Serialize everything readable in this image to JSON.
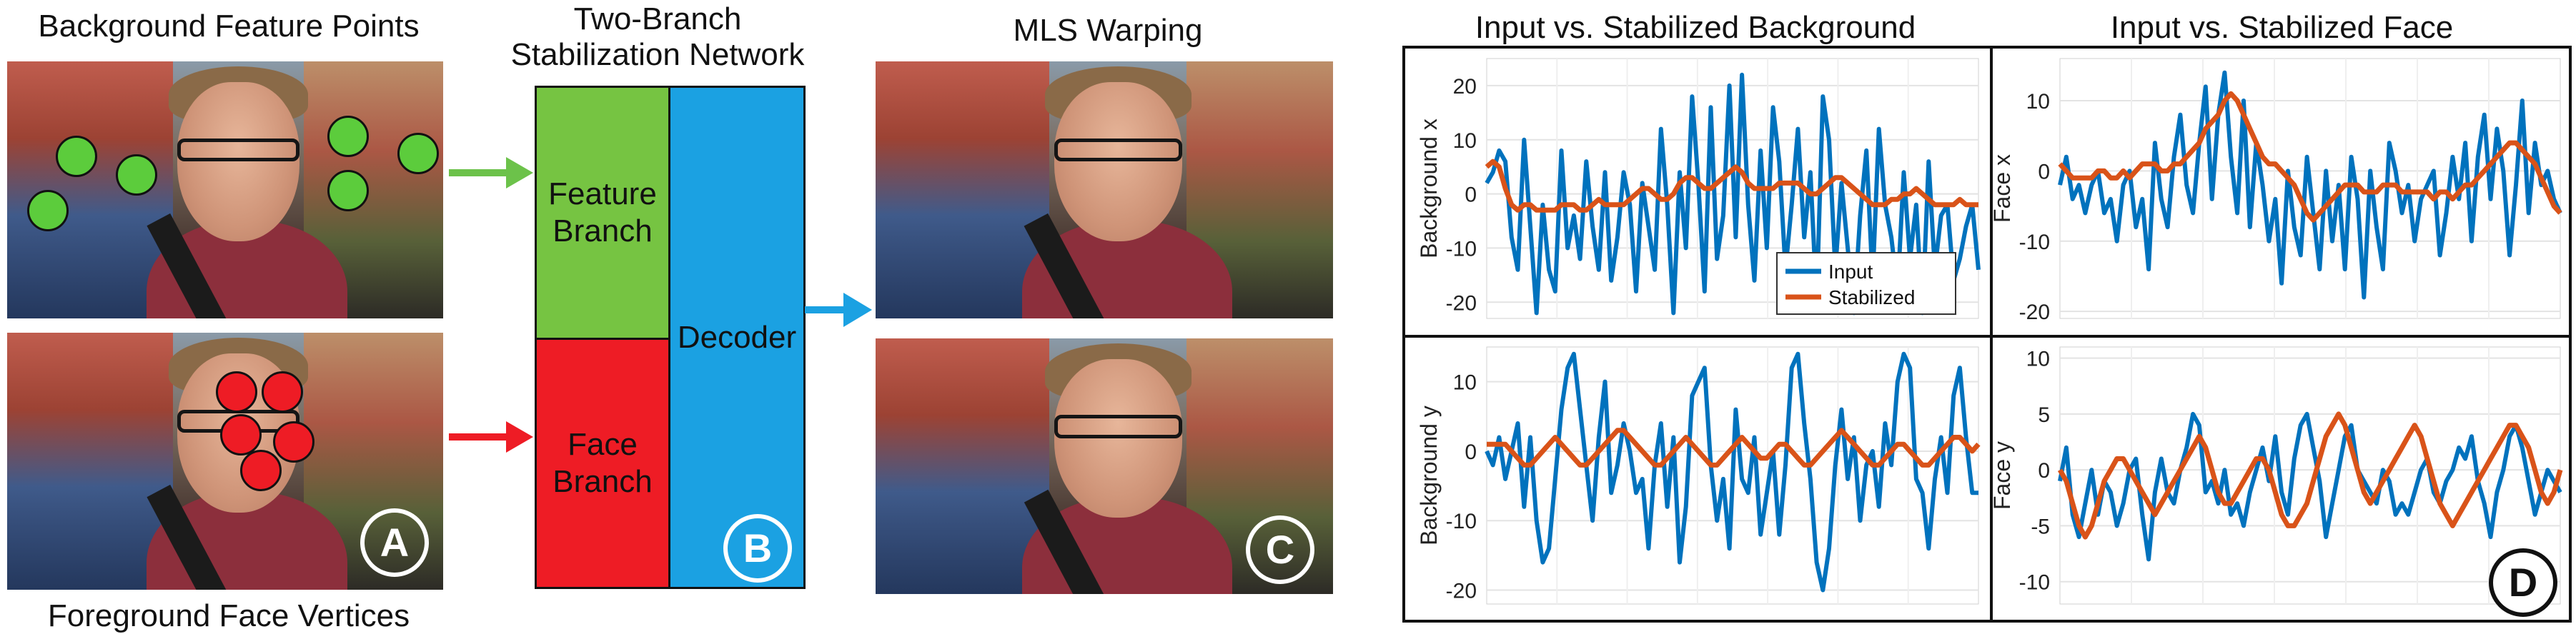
{
  "captions": {
    "background_feature_points": "Background Feature Points",
    "foreground_face_vertices": "Foreground Face Vertices",
    "network_title_line1": "Two-Branch",
    "network_title_line2": "Stabilization Network",
    "mls_warping": "MLS Warping",
    "plot_title_background": "Input vs. Stabilized Background",
    "plot_title_face": "Input vs. Stabilized Face"
  },
  "network": {
    "feature_branch_line1": "Feature",
    "feature_branch_line2": "Branch",
    "face_branch_line1": "Face",
    "face_branch_line2": "Branch",
    "decoder": "Decoder"
  },
  "badges": {
    "a": "A",
    "b": "B",
    "c": "C",
    "d": "D"
  },
  "colors": {
    "feature_branch": "#76c442",
    "face_branch": "#ee1c25",
    "decoder": "#1ba1e2",
    "green_arrow": "#6cc24a",
    "red_arrow": "#ee1c25",
    "blue_arrow": "#1ba1e2",
    "input_series": "#0072bd",
    "stabilized_series": "#d95319"
  },
  "chart_data": [
    {
      "type": "line",
      "ylabel": "Background x",
      "ylim": [
        -23,
        25
      ],
      "yticks": [
        -20,
        -10,
        0,
        10,
        20
      ],
      "legend": {
        "entries": [
          "Input",
          "Stabilized"
        ],
        "placement": "bottom-right"
      },
      "series": [
        {
          "name": "Input",
          "values": [
            2,
            4,
            8,
            6,
            -8,
            -14,
            10,
            -6,
            -22,
            -2,
            -14,
            -18,
            8,
            -10,
            -4,
            -12,
            6,
            -6,
            -14,
            4,
            -16,
            -8,
            4,
            -2,
            -18,
            2,
            -6,
            -14,
            12,
            -2,
            -22,
            4,
            -10,
            18,
            2,
            -18,
            16,
            -12,
            -4,
            20,
            -8,
            22,
            -2,
            -16,
            8,
            -10,
            16,
            6,
            -14,
            -2,
            12,
            -8,
            4,
            -20,
            18,
            10,
            -14,
            2,
            -10,
            -22,
            -4,
            8,
            -16,
            12,
            -2,
            -8,
            -18,
            4,
            -12,
            -2,
            -22,
            6,
            -14,
            -4,
            -2,
            -16,
            -12,
            -6,
            -2,
            -14
          ]
        },
        {
          "name": "Stabilized",
          "values": [
            5,
            6,
            5,
            1,
            -2,
            -3,
            -2,
            -2,
            -3,
            -3,
            -3,
            -3,
            -2,
            -2,
            -2,
            -3,
            -3,
            -2,
            -1,
            -2,
            -2,
            -2,
            -2,
            -1,
            0,
            1,
            1,
            0,
            -1,
            -1,
            0,
            2,
            3,
            3,
            2,
            1,
            1,
            2,
            3,
            4,
            5,
            4,
            2,
            1,
            1,
            1,
            1,
            2,
            2,
            2,
            2,
            1,
            0,
            0,
            1,
            2,
            3,
            3,
            2,
            1,
            0,
            -1,
            -2,
            -2,
            -2,
            -1,
            -1,
            0,
            0,
            1,
            0,
            -1,
            -2,
            -2,
            -2,
            -2,
            -1,
            -2,
            -2,
            -2
          ]
        }
      ]
    },
    {
      "type": "line",
      "ylabel": "Face x",
      "ylim": [
        -21,
        16
      ],
      "yticks": [
        -20,
        -10,
        0,
        10
      ],
      "series": [
        {
          "name": "Input",
          "values": [
            -2,
            2,
            -4,
            -2,
            -6,
            -2,
            0,
            -6,
            -4,
            -10,
            -2,
            0,
            -8,
            -4,
            -14,
            4,
            -4,
            -8,
            2,
            8,
            -2,
            -6,
            4,
            12,
            -4,
            8,
            14,
            2,
            -6,
            10,
            -8,
            4,
            -2,
            -10,
            -4,
            -16,
            0,
            -8,
            -12,
            2,
            -6,
            -14,
            0,
            -10,
            -2,
            -14,
            2,
            -4,
            -18,
            0,
            -8,
            -14,
            4,
            0,
            -6,
            -2,
            -10,
            -4,
            -2,
            0,
            -12,
            -6,
            2,
            -4,
            4,
            -10,
            2,
            8,
            -4,
            6,
            0,
            -12,
            -2,
            10,
            -6,
            4,
            -2,
            0,
            -4,
            -6
          ]
        },
        {
          "name": "Stabilized",
          "values": [
            1,
            0,
            -1,
            -1,
            -1,
            -1,
            0,
            0,
            -1,
            -1,
            0,
            -1,
            0,
            1,
            1,
            1,
            0,
            0,
            1,
            1,
            2,
            3,
            4,
            6,
            7,
            8,
            10,
            11,
            10,
            8,
            6,
            4,
            2,
            1,
            1,
            0,
            -1,
            -2,
            -4,
            -6,
            -7,
            -6,
            -5,
            -4,
            -3,
            -2,
            -2,
            -2,
            -3,
            -3,
            -3,
            -2,
            -2,
            -2,
            -3,
            -3,
            -3,
            -3,
            -3,
            -4,
            -3,
            -3,
            -4,
            -3,
            -2,
            -2,
            -1,
            0,
            1,
            2,
            3,
            4,
            4,
            3,
            2,
            1,
            -1,
            -3,
            -5,
            -6
          ]
        }
      ]
    },
    {
      "type": "line",
      "ylabel": "Background y",
      "ylim": [
        -22,
        15
      ],
      "yticks": [
        -20,
        -10,
        0,
        10
      ],
      "series": [
        {
          "name": "Input",
          "values": [
            0,
            -2,
            2,
            -4,
            0,
            4,
            -8,
            2,
            -10,
            -16,
            -14,
            -4,
            6,
            12,
            14,
            6,
            -2,
            -10,
            2,
            10,
            -6,
            -2,
            4,
            0,
            -6,
            -4,
            -14,
            -2,
            4,
            -8,
            2,
            -16,
            -8,
            8,
            10,
            12,
            -2,
            -10,
            -4,
            -14,
            6,
            -4,
            -6,
            2,
            -12,
            -6,
            0,
            -12,
            -2,
            12,
            14,
            4,
            -4,
            -16,
            -20,
            -14,
            -2,
            6,
            -4,
            2,
            -10,
            -2,
            0,
            -8,
            4,
            -2,
            10,
            14,
            12,
            -4,
            -6,
            -14,
            -4,
            2,
            -6,
            8,
            12,
            2,
            -6,
            -6
          ]
        },
        {
          "name": "Stabilized",
          "values": [
            1,
            1,
            1,
            1,
            0,
            -1,
            -2,
            -2,
            -1,
            0,
            1,
            2,
            1,
            0,
            -1,
            -2,
            -2,
            -1,
            0,
            1,
            2,
            3,
            3,
            2,
            1,
            0,
            -1,
            -2,
            -2,
            -1,
            0,
            1,
            2,
            1,
            0,
            -1,
            -2,
            -2,
            -1,
            0,
            1,
            2,
            1,
            0,
            -1,
            -1,
            0,
            1,
            1,
            0,
            -1,
            -2,
            -2,
            -1,
            0,
            1,
            2,
            3,
            2,
            1,
            0,
            -1,
            -2,
            -2,
            -1,
            0,
            1,
            1,
            0,
            -1,
            -2,
            -2,
            -1,
            0,
            1,
            2,
            2,
            1,
            0,
            1
          ]
        }
      ]
    },
    {
      "type": "line",
      "ylabel": "Face y",
      "ylim": [
        -12,
        11
      ],
      "yticks": [
        -10,
        -5,
        0,
        5,
        10
      ],
      "series": [
        {
          "name": "Input",
          "values": [
            -1,
            2,
            -4,
            -6,
            -3,
            0,
            -4,
            -1,
            -2,
            -5,
            -3,
            0,
            1,
            -4,
            -8,
            -2,
            1,
            -2,
            -3,
            0,
            2,
            5,
            4,
            -2,
            -1,
            -3,
            0,
            -4,
            -3,
            -5,
            -2,
            0,
            2,
            -1,
            3,
            -2,
            -4,
            1,
            4,
            5,
            2,
            -1,
            -6,
            -3,
            0,
            3,
            4,
            0,
            -1,
            -2,
            -3,
            0,
            -1,
            -4,
            -3,
            -4,
            -2,
            0,
            1,
            -2,
            -3,
            -1,
            0,
            2,
            1,
            3,
            -1,
            -3,
            -6,
            -2,
            0,
            3,
            4,
            2,
            -1,
            -4,
            -2,
            0,
            -1,
            -2
          ]
        },
        {
          "name": "Stabilized",
          "values": [
            0,
            -1,
            -3,
            -5,
            -6,
            -5,
            -3,
            -1,
            0,
            1,
            1,
            0,
            -1,
            -2,
            -3,
            -4,
            -3,
            -2,
            -1,
            0,
            1,
            2,
            3,
            2,
            0,
            -2,
            -3,
            -3,
            -2,
            -1,
            0,
            1,
            1,
            0,
            -2,
            -4,
            -5,
            -5,
            -4,
            -3,
            -1,
            1,
            3,
            4,
            5,
            4,
            2,
            0,
            -2,
            -3,
            -2,
            -1,
            0,
            1,
            2,
            3,
            4,
            3,
            1,
            -1,
            -3,
            -4,
            -5,
            -4,
            -3,
            -2,
            -1,
            0,
            1,
            2,
            3,
            4,
            4,
            3,
            2,
            0,
            -2,
            -3,
            -2,
            0
          ]
        }
      ]
    }
  ]
}
